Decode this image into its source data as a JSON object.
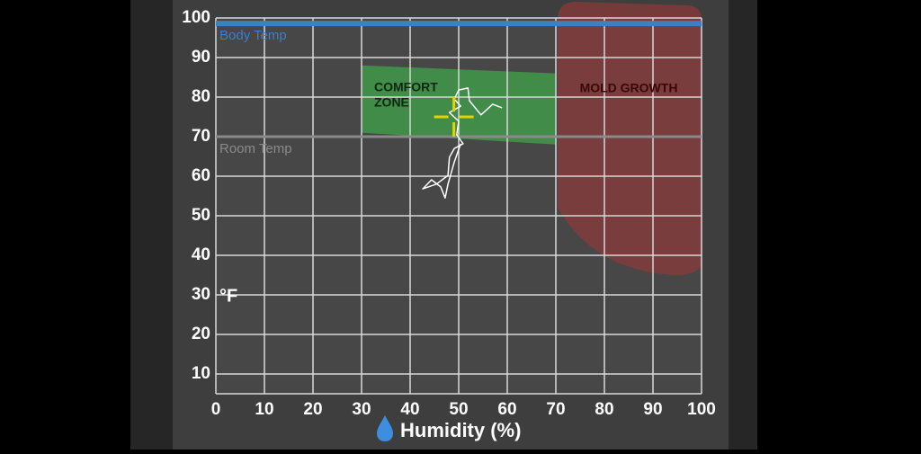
{
  "chart_data": {
    "type": "line",
    "x_label": "Humidity (%)",
    "y_label": "°F",
    "xlim": [
      0,
      100
    ],
    "ylim": [
      5,
      100
    ],
    "xticks": [
      0,
      10,
      20,
      30,
      40,
      50,
      60,
      70,
      80,
      90,
      100
    ],
    "yticks": [
      10,
      20,
      30,
      40,
      50,
      60,
      70,
      80,
      90,
      100
    ],
    "grid": true,
    "reference_lines": [
      {
        "name": "Body Temp",
        "value": 98.6,
        "color": "#3d7fbf"
      },
      {
        "name": "Room Temp",
        "value": 70,
        "color": "#8a8a8a"
      }
    ],
    "regions": [
      {
        "label": [
          "COMFORT",
          "ZONE"
        ],
        "color": "#3fa34a",
        "x": [
          30,
          70,
          70,
          30
        ],
        "y": [
          88,
          86,
          68,
          71
        ]
      },
      {
        "label": [
          "MOLD GROWTH"
        ],
        "color": "#8a3a3a",
        "x": [
          70,
          100
        ],
        "y": [
          35,
          100
        ]
      }
    ],
    "series": [
      {
        "color": "#ffffff",
        "x": [
          58.9,
          57.0,
          54.6,
          52.2,
          51.9,
          50.0,
          49.1,
          50.4,
          48.1,
          50.0,
          49.6,
          50.9,
          49.1,
          48.1,
          47.8,
          45.4,
          42.6,
          44.4,
          46.3,
          47.2,
          47.8,
          49.1,
          50.4
        ],
        "values": [
          77.3,
          78.2,
          75.5,
          79.1,
          82.3,
          81.8,
          79.5,
          77.7,
          76.1,
          73.9,
          70.5,
          68.2,
          67.0,
          64.8,
          60.2,
          58.0,
          56.8,
          59.1,
          57.3,
          54.5,
          58.0,
          63.6,
          68.2
        ]
      }
    ],
    "current": {
      "x": 49,
      "y": 75,
      "color": "#e6d200"
    }
  }
}
